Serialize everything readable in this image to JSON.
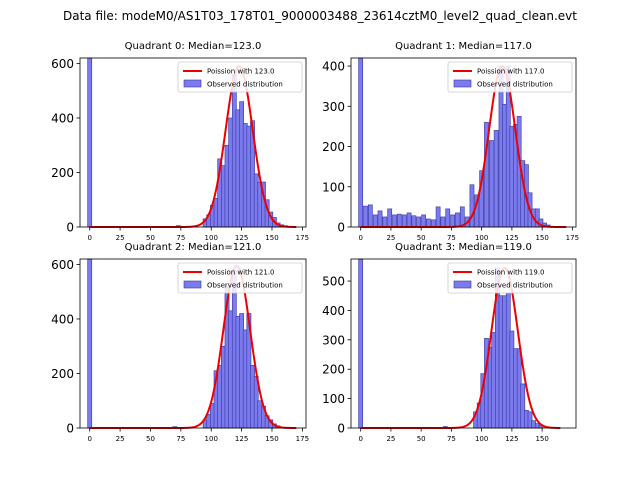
{
  "suptitle": "Data file: modeM0/AS1T03_178T01_9000003488_23614cztM0_level2_quad_clean.evt",
  "colors": {
    "bar_fill": "#7b7bee",
    "bar_edge": "#3535a0",
    "line": "#ee0000"
  },
  "chart_data": [
    {
      "type": "bar",
      "title": "Quadrant 0: Median=123.0",
      "legend": {
        "line": "Poission with 123.0",
        "bars": "Observed distribution",
        "placement": "top-right"
      },
      "xlim": [
        -8,
        178
      ],
      "ylim": [
        0,
        620
      ],
      "xticks": [
        0,
        25,
        50,
        75,
        100,
        125,
        150,
        175
      ],
      "yticks": [
        0,
        200,
        400,
        600
      ],
      "bin_width": 3.4,
      "bars": [
        [
          0,
          620
        ],
        [
          73,
          5
        ],
        [
          95,
          30
        ],
        [
          98,
          45
        ],
        [
          101,
          80
        ],
        [
          104,
          105
        ],
        [
          107,
          250
        ],
        [
          110,
          225
        ],
        [
          113,
          300
        ],
        [
          116,
          400
        ],
        [
          119,
          560
        ],
        [
          122,
          430
        ],
        [
          125,
          460
        ],
        [
          128,
          380
        ],
        [
          131,
          370
        ],
        [
          134,
          390
        ],
        [
          137,
          195
        ],
        [
          140,
          165
        ],
        [
          143,
          165
        ],
        [
          146,
          100
        ],
        [
          149,
          55
        ],
        [
          152,
          35
        ],
        [
          155,
          15
        ],
        [
          158,
          8
        ],
        [
          161,
          5
        ]
      ],
      "curve": {
        "mu": 123,
        "sigma": 11.1,
        "peak": 590,
        "x0": 0,
        "x1": 170
      }
    },
    {
      "type": "bar",
      "title": "Quadrant 1: Median=117.0",
      "legend": {
        "line": "Poission with 117.0",
        "bars": "Observed distribution",
        "placement": "top-right"
      },
      "xlim": [
        -8,
        178
      ],
      "ylim": [
        0,
        420
      ],
      "xticks": [
        0,
        25,
        50,
        75,
        100,
        125,
        150,
        175
      ],
      "yticks": [
        0,
        100,
        200,
        300,
        400
      ],
      "bin_width": 3.4,
      "bars": [
        [
          0,
          420
        ],
        [
          4,
          52
        ],
        [
          8,
          55
        ],
        [
          12,
          30
        ],
        [
          16,
          40
        ],
        [
          20,
          25
        ],
        [
          24,
          45
        ],
        [
          28,
          30
        ],
        [
          32,
          32
        ],
        [
          36,
          30
        ],
        [
          40,
          35
        ],
        [
          44,
          28
        ],
        [
          48,
          25
        ],
        [
          52,
          30
        ],
        [
          56,
          20
        ],
        [
          60,
          18
        ],
        [
          64,
          50
        ],
        [
          68,
          25
        ],
        [
          72,
          45
        ],
        [
          76,
          30
        ],
        [
          80,
          35
        ],
        [
          84,
          50
        ],
        [
          88,
          25
        ],
        [
          92,
          105
        ],
        [
          96,
          80
        ],
        [
          100,
          140
        ],
        [
          104,
          260
        ],
        [
          108,
          215
        ],
        [
          112,
          240
        ],
        [
          116,
          400
        ],
        [
          119,
          305
        ],
        [
          122,
          400
        ],
        [
          125,
          250
        ],
        [
          128,
          255
        ],
        [
          131,
          275
        ],
        [
          134,
          165
        ],
        [
          137,
          155
        ],
        [
          140,
          85
        ],
        [
          143,
          45
        ],
        [
          146,
          45
        ],
        [
          149,
          20
        ],
        [
          152,
          10
        ],
        [
          155,
          5
        ]
      ],
      "curve": {
        "mu": 117,
        "sigma": 10.8,
        "peak": 400,
        "x0": 0,
        "x1": 170
      }
    },
    {
      "type": "bar",
      "title": "Quadrant 2: Median=121.0",
      "legend": {
        "line": "Poission with 121.0",
        "bars": "Observed distribution",
        "placement": "top-right"
      },
      "xlim": [
        -8,
        178
      ],
      "ylim": [
        0,
        620
      ],
      "xticks": [
        0,
        25,
        50,
        75,
        100,
        125,
        150,
        175
      ],
      "yticks": [
        0,
        200,
        400,
        600
      ],
      "bin_width": 3.4,
      "bars": [
        [
          0,
          620
        ],
        [
          70,
          5
        ],
        [
          95,
          30
        ],
        [
          98,
          50
        ],
        [
          101,
          90
        ],
        [
          104,
          210
        ],
        [
          107,
          230
        ],
        [
          110,
          300
        ],
        [
          113,
          520
        ],
        [
          116,
          430
        ],
        [
          119,
          580
        ],
        [
          122,
          410
        ],
        [
          125,
          420
        ],
        [
          128,
          360
        ],
        [
          131,
          420
        ],
        [
          134,
          230
        ],
        [
          137,
          190
        ],
        [
          140,
          100
        ],
        [
          143,
          80
        ],
        [
          146,
          45
        ],
        [
          149,
          30
        ],
        [
          152,
          15
        ],
        [
          155,
          8
        ]
      ],
      "curve": {
        "mu": 121,
        "sigma": 11.0,
        "peak": 595,
        "x0": 0,
        "x1": 170
      }
    },
    {
      "type": "bar",
      "title": "Quadrant 3: Median=119.0",
      "legend": {
        "line": "Poission with 119.0",
        "bars": "Observed distribution",
        "placement": "top-right"
      },
      "xlim": [
        -8,
        178
      ],
      "ylim": [
        0,
        575
      ],
      "xticks": [
        0,
        25,
        50,
        75,
        100,
        125,
        150
      ],
      "yticks": [
        0,
        100,
        200,
        300,
        400,
        500
      ],
      "bin_width": 3.4,
      "bars": [
        [
          0,
          575
        ],
        [
          70,
          5
        ],
        [
          95,
          55
        ],
        [
          98,
          85
        ],
        [
          101,
          185
        ],
        [
          104,
          305
        ],
        [
          107,
          275
        ],
        [
          110,
          325
        ],
        [
          113,
          545
        ],
        [
          116,
          450
        ],
        [
          119,
          450
        ],
        [
          122,
          460
        ],
        [
          125,
          330
        ],
        [
          128,
          270
        ],
        [
          131,
          270
        ],
        [
          134,
          150
        ],
        [
          137,
          60
        ],
        [
          140,
          55
        ],
        [
          143,
          25
        ],
        [
          146,
          15
        ],
        [
          149,
          8
        ]
      ],
      "curve": {
        "mu": 119,
        "sigma": 10.9,
        "peak": 545,
        "x0": 0,
        "x1": 165
      }
    }
  ]
}
